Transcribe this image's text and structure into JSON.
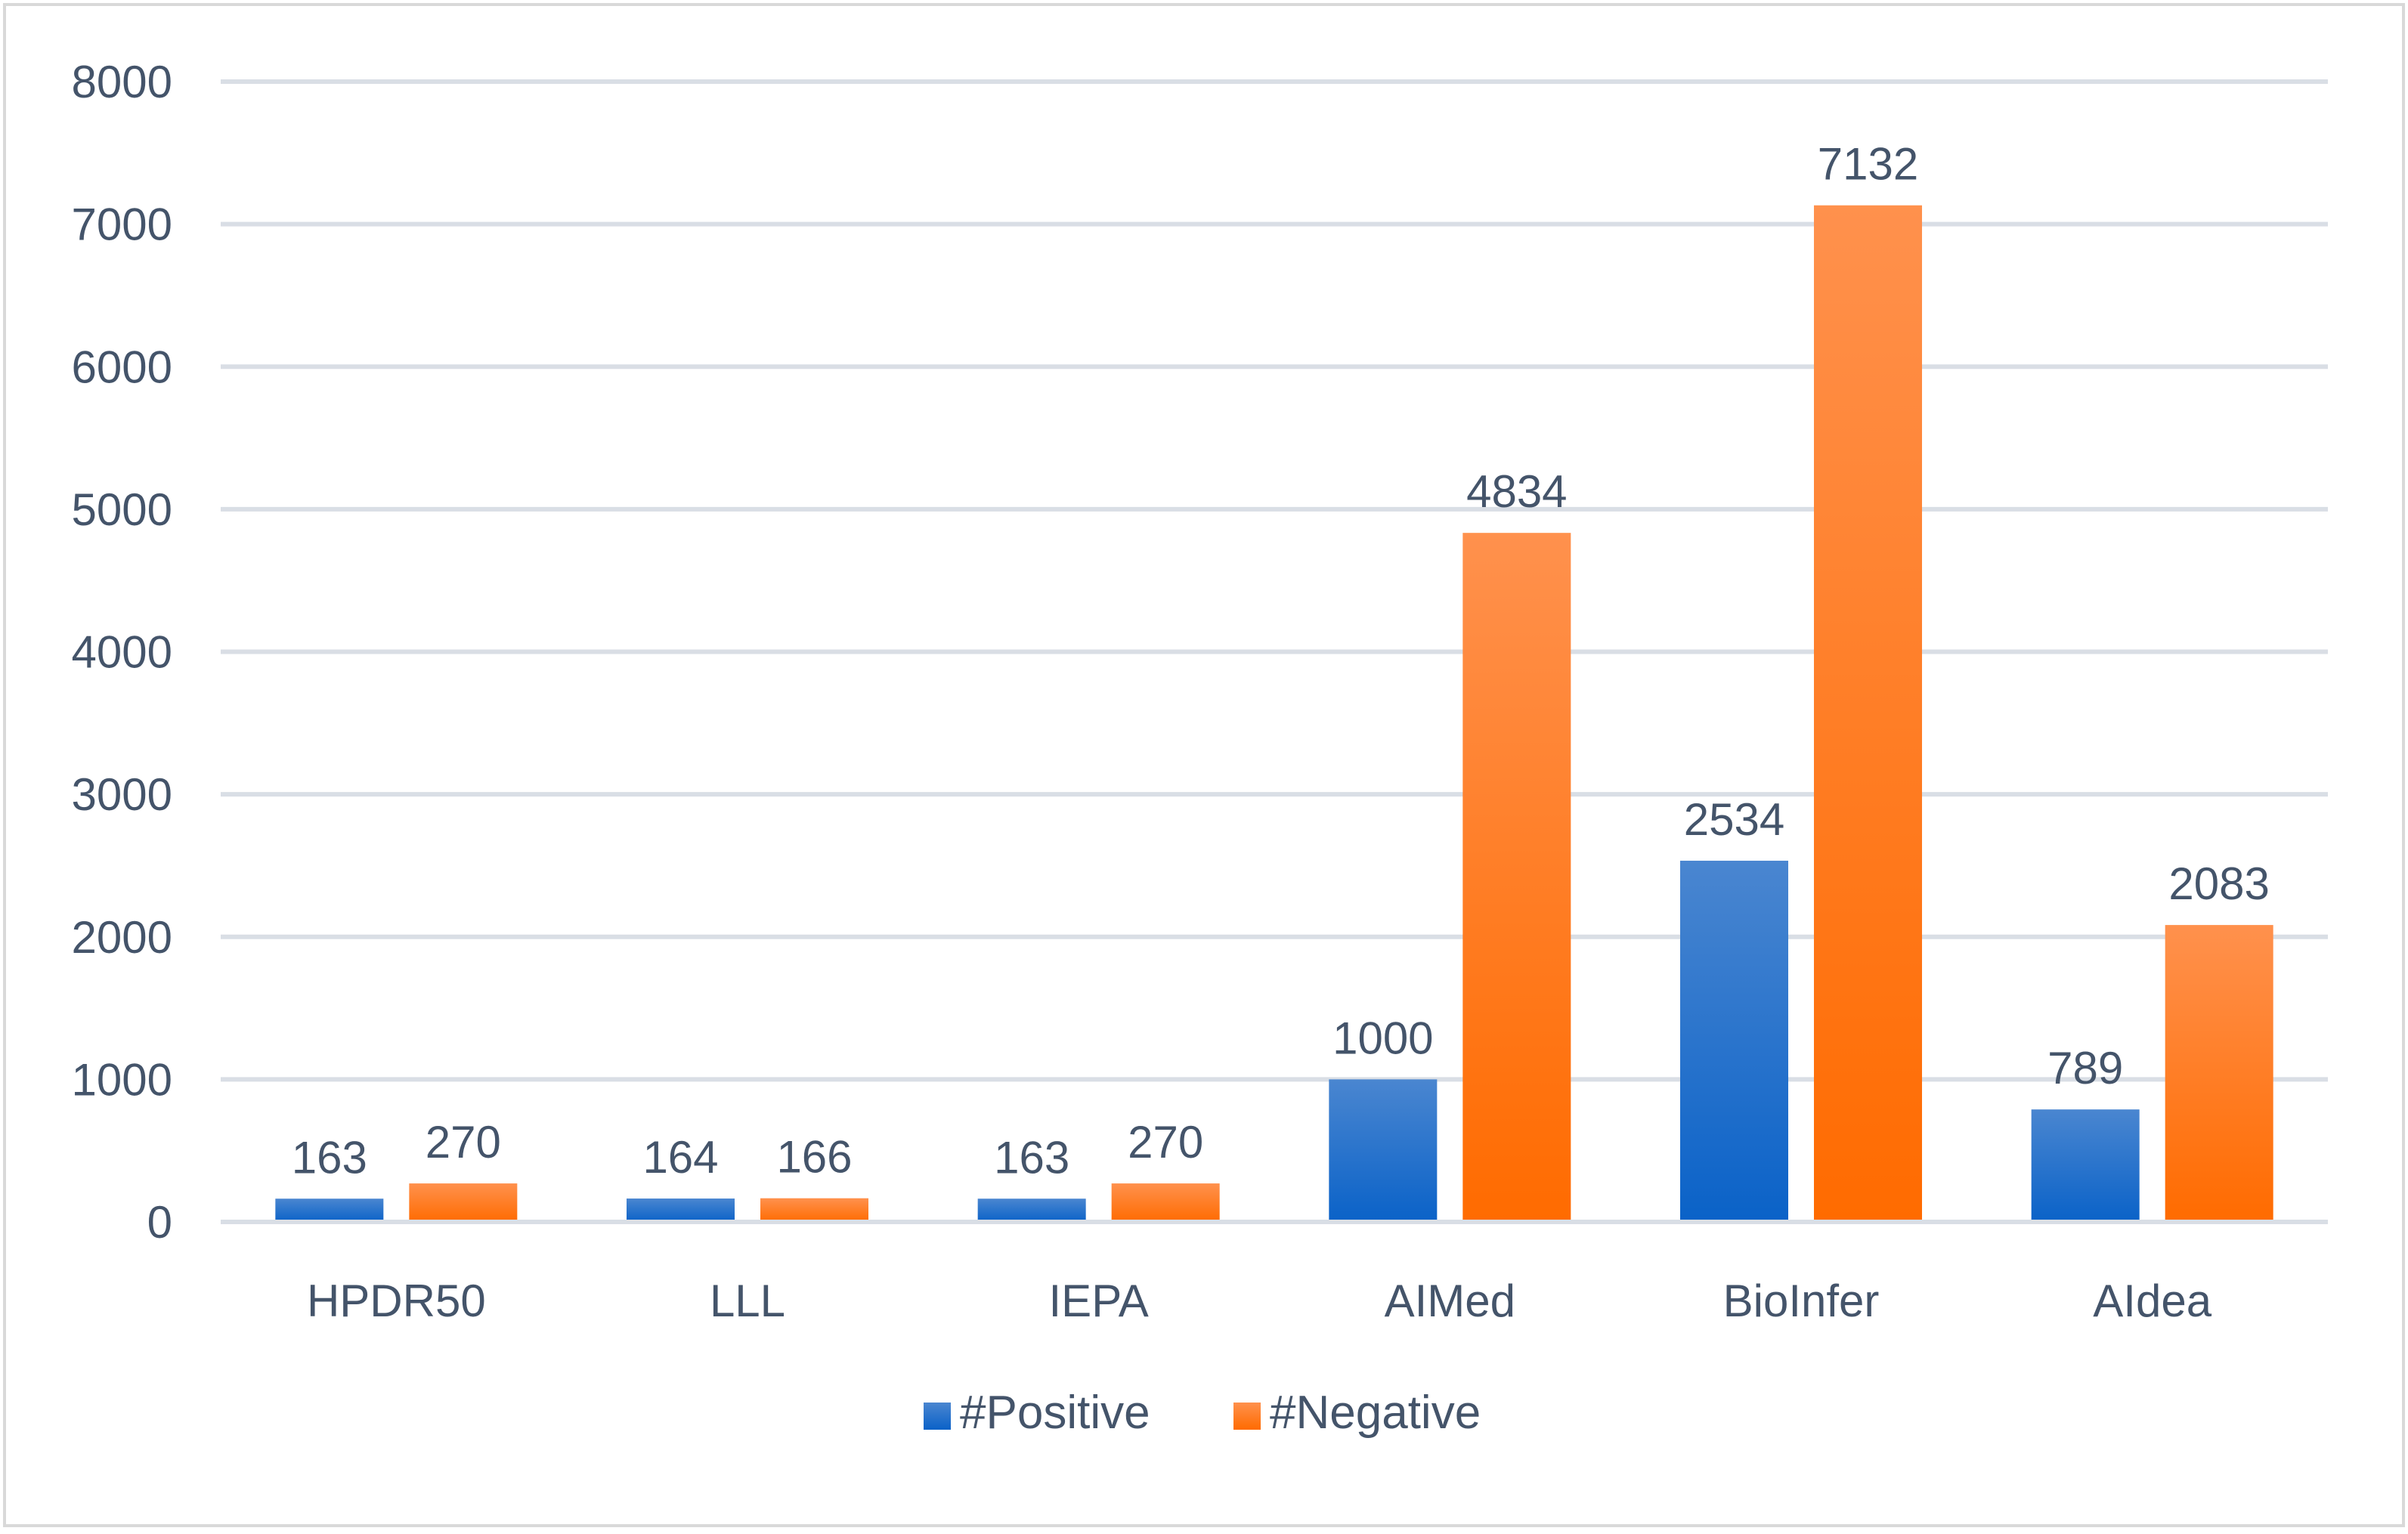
{
  "chart_data": {
    "type": "bar",
    "title": "",
    "xlabel": "",
    "ylabel": "",
    "categories": [
      "HPDR50",
      "LLL",
      "IEPA",
      "AIMed",
      "BioInfer",
      "AIdea"
    ],
    "series": [
      {
        "name": "#Positive",
        "values": [
          163,
          164,
          163,
          1000,
          2534,
          789
        ],
        "color": "#1565C0"
      },
      {
        "name": "#Negative",
        "values": [
          270,
          166,
          270,
          4834,
          7132,
          2083
        ],
        "color": "#FF7A1A"
      }
    ],
    "ylim": [
      0,
      8000
    ],
    "yticks": [
      "0",
      "1000",
      "2000",
      "3000",
      "4000",
      "5000",
      "6000",
      "7000",
      "8000"
    ],
    "grid": true,
    "legend_position": "bottom",
    "data_labels": true
  },
  "colors": {
    "positive_top": "#4A86D0",
    "positive_bottom": "#0A62C8",
    "negative_top": "#FF914D",
    "negative_bottom": "#FF6B00",
    "grid": "#D9DEE5",
    "text": "#44546A",
    "frame": "#D9D9D9"
  }
}
